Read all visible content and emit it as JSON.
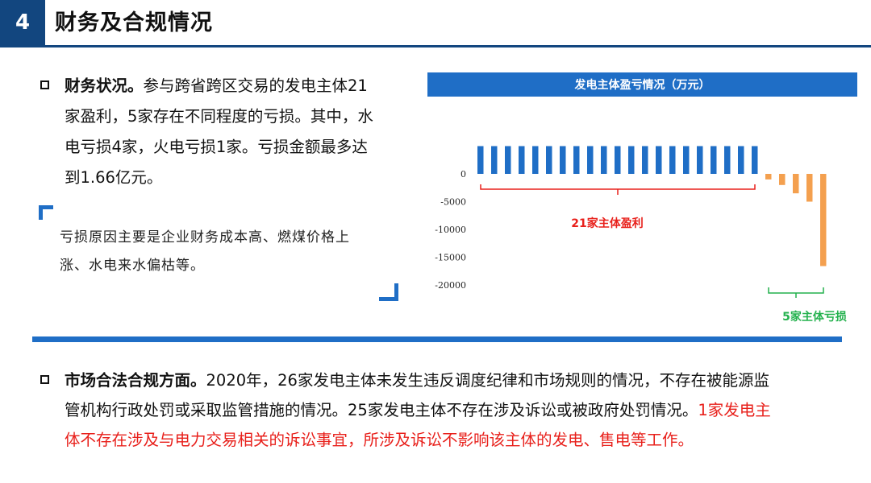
{
  "header": {
    "section_number": "4",
    "title": "财务及合规情况"
  },
  "finance": {
    "lead": "财务状况。",
    "line1_rest": "参与跨省跨区交易的发电主体21",
    "line2": "家盈利，5家存在不同程度的亏损。其中，水",
    "line3": "电亏损4家，火电亏损1家。亏损金额最多达",
    "line4": "到1.66亿元。"
  },
  "quote": {
    "line1": "亏损原因主要是企业财务成本高、燃煤价格上",
    "line2": "涨、水电来水偏枯等。"
  },
  "compliance": {
    "lead": "市场合法合规方面。",
    "line1_rest": "2020年，26家发电主体未发生违反调度纪律和市场规则的情况，不存在被能源监",
    "line2_black": "管机构行政处罚或采取监管措施的情况。25家发电主体不存在涉及诉讼或被政府处罚情况。",
    "line2_red": "1家发电主",
    "line3_red": "体不存在涉及与电力交易相关的诉讼事宜，所涉及诉讼不影响该主体的发电、售电等工作。"
  },
  "chart_data": {
    "type": "bar",
    "title": "发电主体盈亏情况（万元）",
    "ylim": [
      -20000,
      0
    ],
    "yticks": [
      "0",
      "-5000",
      "-10000",
      "-15000",
      "-20000"
    ],
    "profit_values": [
      5000,
      5000,
      5000,
      5000,
      5000,
      5000,
      5000,
      5000,
      5000,
      5000,
      5000,
      5000,
      5000,
      5000,
      5000,
      5000,
      5000,
      5000,
      5000,
      5000,
      5000
    ],
    "loss_values": [
      -1000,
      -2000,
      -3500,
      -5000,
      -16600
    ],
    "profit_annotation": "21家主体盈利",
    "loss_annotation": "5家主体亏损",
    "colors": {
      "profit": "#1f6ec6",
      "loss": "#f4a04f",
      "profit_brace": "#e8201b",
      "loss_brace": "#23b14d",
      "tick_text": "#222222"
    }
  }
}
